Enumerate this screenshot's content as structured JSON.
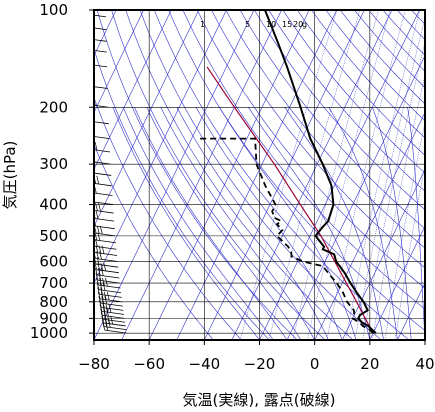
{
  "chart_data": {
    "type": "skew-t",
    "xlabel": "気温(実線), 露点(破線)",
    "ylabel": "気圧(hPa)",
    "xlim": [
      -80,
      40
    ],
    "ylim": [
      1050,
      100
    ],
    "y_scale": "log",
    "x_ticks": [
      -80,
      -60,
      -40,
      -20,
      0,
      20,
      40
    ],
    "x_tick_labels": [
      "−80",
      "−60",
      "−40",
      "−20",
      "0",
      "20",
      "40"
    ],
    "y_ticks": [
      100,
      200,
      300,
      400,
      500,
      600,
      700,
      800,
      900,
      1000
    ],
    "y_tick_labels": [
      "100",
      "200",
      "300",
      "400",
      "500",
      "600",
      "700",
      "800",
      "900",
      "1000"
    ],
    "mixing_ratio_labels": [
      "1",
      "5",
      "10",
      "15",
      "20",
      "g"
    ],
    "temperature_series": {
      "name": "気温",
      "p": [
        1000,
        975,
        950,
        925,
        900,
        880,
        850,
        800,
        750,
        700,
        650,
        600,
        570,
        550,
        540,
        500,
        470,
        450,
        400,
        350,
        300,
        250,
        200,
        150,
        125,
        100
      ],
      "t": [
        21,
        19,
        17,
        14,
        12,
        12,
        14,
        11,
        7,
        3,
        -1,
        -6,
        -8,
        -13,
        -13,
        -18,
        -17,
        -16,
        -17,
        -21,
        -28,
        -37,
        -46,
        -58,
        -66,
        -76
      ]
    },
    "dewpoint_series": {
      "name": "露点",
      "p": [
        1000,
        975,
        950,
        925,
        900,
        880,
        850,
        800,
        750,
        700,
        650,
        620,
        600,
        580,
        560,
        540,
        500,
        480,
        460,
        450,
        440,
        420,
        400,
        350,
        300,
        250,
        250
      ],
      "t": [
        20,
        18,
        15,
        13,
        10,
        10,
        9,
        5,
        2,
        -2,
        -7,
        -10,
        -18,
        -23,
        -24,
        -26,
        -32,
        -31,
        -34,
        -33,
        -36,
        -38,
        -38,
        -45,
        -52,
        -57,
        -78
      ]
    },
    "parcel_series": {
      "p": [
        1000,
        900,
        800,
        700,
        600,
        500,
        400,
        300,
        200,
        150
      ],
      "t": [
        20,
        14.5,
        8.5,
        1.5,
        -6.5,
        -16,
        -29,
        -45.5,
        -70,
        -87
      ]
    },
    "grid": true,
    "colors": {
      "temperature": "#000000",
      "dewpoint": "#000000",
      "parcel": "#990033",
      "isotherms": "#3333cc",
      "dry_adiabats": "#3333cc",
      "moist_adiabats": "#3333cc",
      "mixing_ratio": "#3333cc",
      "grid": "#000000"
    },
    "wind_barbs": {
      "side": "left",
      "p": [
        1000,
        975,
        950,
        925,
        900,
        875,
        850,
        825,
        800,
        775,
        750,
        725,
        700,
        675,
        650,
        625,
        600,
        575,
        550,
        525,
        500,
        475,
        450,
        425,
        400,
        375,
        350,
        325,
        300,
        275,
        250,
        225,
        200,
        175,
        150,
        135,
        125,
        115,
        105,
        100
      ]
    }
  }
}
